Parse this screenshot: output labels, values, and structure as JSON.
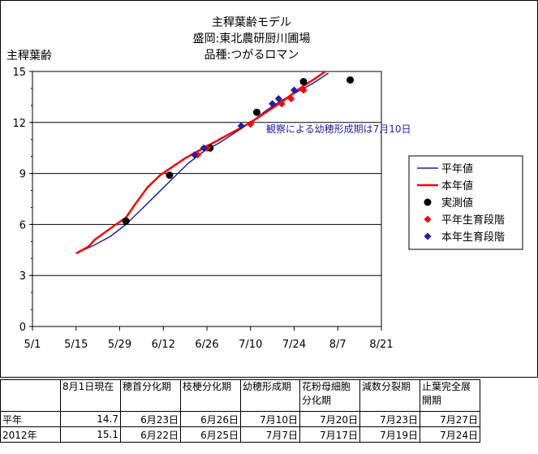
{
  "chart_data": {
    "type": "line",
    "title": [
      "主稈葉齢モデル",
      "盛岡:東北農研厨川圃場",
      "品種:つがるロマン"
    ],
    "ylabel": "主稈葉齢",
    "xlabel": "",
    "ylim": [
      0,
      15
    ],
    "yticks": [
      0,
      3,
      6,
      9,
      12,
      15
    ],
    "xticks": [
      "5/1",
      "5/15",
      "5/29",
      "6/12",
      "6/26",
      "7/10",
      "7/24",
      "8/7",
      "8/21"
    ],
    "x_unit": "date",
    "grid": "horizontal",
    "annotation": "観察による幼穂形成期は7月10日",
    "legend": {
      "placement": "right",
      "entries": [
        {
          "label": "平年値",
          "kind": "line",
          "color": "#1f1fa8"
        },
        {
          "label": "本年値",
          "kind": "line",
          "color": "#ff0000"
        },
        {
          "label": "実測値",
          "kind": "circle",
          "color": "#000000"
        },
        {
          "label": "平年生育段階",
          "kind": "diamond",
          "color": "#ff0000"
        },
        {
          "label": "本年生育段階",
          "kind": "diamond",
          "color": "#1f1fa8"
        }
      ]
    },
    "series": [
      {
        "name": "平年値",
        "kind": "line",
        "color": "#1f1fa8",
        "x": [
          "5/15",
          "5/21",
          "5/26",
          "5/31",
          "6/5",
          "6/10",
          "6/15",
          "6/20",
          "6/25",
          "6/30",
          "7/5",
          "7/10",
          "7/15",
          "7/20",
          "7/25",
          "7/30",
          "8/4"
        ],
        "y": [
          4.3,
          4.8,
          5.3,
          6.0,
          6.9,
          7.8,
          8.7,
          9.6,
          10.3,
          10.8,
          11.4,
          12.0,
          12.7,
          13.3,
          13.8,
          14.3,
          14.9
        ]
      },
      {
        "name": "本年値",
        "kind": "line",
        "color": "#ff0000",
        "x": [
          "5/15",
          "5/19",
          "5/21",
          "5/24",
          "5/27",
          "5/31",
          "6/3",
          "6/7",
          "6/11",
          "6/15",
          "6/19",
          "6/23",
          "6/27",
          "7/1",
          "7/5",
          "7/10",
          "7/15",
          "7/20",
          "7/25",
          "7/30",
          "8/3"
        ],
        "y": [
          4.3,
          4.7,
          5.1,
          5.5,
          5.9,
          6.4,
          7.2,
          8.2,
          8.9,
          9.4,
          9.9,
          10.3,
          10.7,
          11.1,
          11.5,
          12.0,
          12.6,
          13.2,
          13.9,
          14.5,
          15.0
        ]
      },
      {
        "name": "実測値",
        "kind": "circle",
        "color": "#000000",
        "x": [
          "5/31",
          "6/14",
          "6/27",
          "7/12",
          "7/27",
          "8/11"
        ],
        "y": [
          6.2,
          8.9,
          10.5,
          12.6,
          14.4,
          14.5
        ]
      },
      {
        "name": "平年生育段階",
        "kind": "diamond",
        "color": "#ff0000",
        "x": [
          "6/23",
          "6/26",
          "7/10",
          "7/20",
          "7/23",
          "7/27"
        ],
        "y": [
          10.1,
          10.5,
          11.9,
          13.1,
          13.4,
          13.9
        ]
      },
      {
        "name": "本年生育段階",
        "kind": "diamond",
        "color": "#1f1fa8",
        "x": [
          "6/22",
          "6/25",
          "7/7",
          "7/17",
          "7/19",
          "7/24"
        ],
        "y": [
          10.1,
          10.5,
          11.8,
          13.1,
          13.4,
          13.9
        ]
      }
    ]
  },
  "table": {
    "headers": [
      "",
      "8月1日現在",
      "穂首分化期",
      "枝梗分化期",
      "幼穂形成期",
      "花粉母細胞分化期",
      "減数分裂期",
      "止葉完全展開期"
    ],
    "rows": [
      [
        "平年",
        "14.7",
        "6月23日",
        "6月26日",
        "7月10日",
        "7月20日",
        "7月23日",
        "7月27日"
      ],
      [
        "2012年",
        "15.1",
        "6月22日",
        "6月25日",
        "7月7日",
        "7月17日",
        "7月19日",
        "7月24日"
      ]
    ]
  }
}
